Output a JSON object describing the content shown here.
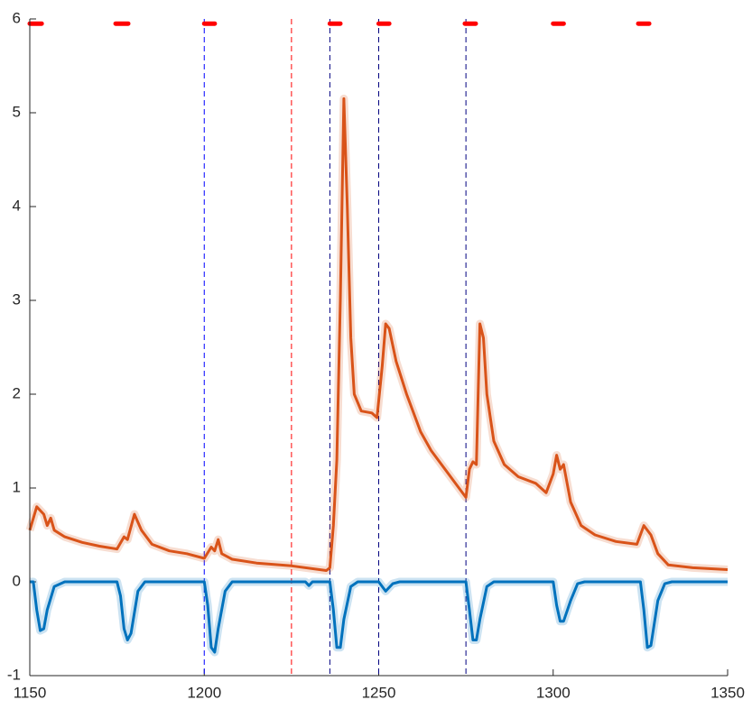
{
  "chart_data": {
    "type": "line",
    "xlim": [
      1150,
      1350
    ],
    "xticks": [
      1150,
      1200,
      1250,
      1300,
      1350
    ],
    "ylim": [
      -1,
      6
    ],
    "yticks": [
      -1,
      0,
      1,
      2,
      3,
      4,
      5,
      6
    ],
    "series": [
      {
        "color": "#d95319",
        "x": [
          1150,
          1152,
          1154,
          1155,
          1156,
          1157,
          1160,
          1165,
          1170,
          1175,
          1177,
          1178,
          1180,
          1182,
          1185,
          1190,
          1195,
          1200,
          1202,
          1203,
          1204,
          1205,
          1208,
          1215,
          1225,
          1235,
          1236,
          1237,
          1238,
          1239,
          1240,
          1241,
          1242,
          1243,
          1245,
          1248,
          1249.5,
          1251,
          1252,
          1253,
          1255,
          1258,
          1262,
          1265,
          1270,
          1275,
          1276,
          1277,
          1278,
          1279,
          1280,
          1281,
          1283,
          1286,
          1290,
          1295,
          1298,
          1300,
          1301,
          1302,
          1303,
          1305,
          1308,
          1312,
          1318,
          1324,
          1326,
          1328,
          1330,
          1333,
          1340,
          1350
        ],
        "values": [
          0.55,
          0.8,
          0.72,
          0.6,
          0.68,
          0.55,
          0.48,
          0.42,
          0.38,
          0.35,
          0.48,
          0.45,
          0.72,
          0.55,
          0.4,
          0.33,
          0.3,
          0.25,
          0.37,
          0.33,
          0.45,
          0.3,
          0.24,
          0.2,
          0.17,
          0.12,
          0.15,
          0.6,
          1.3,
          3.0,
          5.15,
          4.0,
          2.6,
          2.0,
          1.82,
          1.8,
          1.75,
          2.3,
          2.75,
          2.7,
          2.35,
          2.0,
          1.6,
          1.4,
          1.15,
          0.9,
          1.2,
          1.28,
          1.25,
          2.75,
          2.6,
          2.0,
          1.5,
          1.25,
          1.12,
          1.05,
          0.95,
          1.15,
          1.35,
          1.2,
          1.25,
          0.85,
          0.6,
          0.5,
          0.43,
          0.4,
          0.6,
          0.5,
          0.3,
          0.18,
          0.15,
          0.13
        ]
      },
      {
        "color": "#0072bd",
        "x": [
          1150,
          1151,
          1152,
          1153,
          1154,
          1155,
          1157,
          1160,
          1175,
          1176,
          1177,
          1178,
          1179,
          1181,
          1183,
          1200,
          1201,
          1202,
          1203,
          1204,
          1206,
          1208,
          1229,
          1230,
          1231,
          1236,
          1237,
          1238,
          1239,
          1240,
          1242,
          1244,
          1250,
          1252,
          1254,
          1256,
          1275,
          1276,
          1277,
          1278,
          1279,
          1281,
          1283,
          1300,
          1301,
          1302,
          1303,
          1305,
          1307,
          1309,
          1325,
          1326,
          1327,
          1328,
          1330,
          1332,
          1334,
          1350
        ],
        "values": [
          0,
          0,
          -0.3,
          -0.52,
          -0.5,
          -0.3,
          -0.05,
          0,
          0,
          -0.15,
          -0.5,
          -0.62,
          -0.55,
          -0.1,
          0,
          0,
          -0.25,
          -0.7,
          -0.75,
          -0.5,
          -0.1,
          0,
          0,
          -0.04,
          0,
          0,
          -0.3,
          -0.7,
          -0.7,
          -0.4,
          -0.05,
          0,
          0,
          -0.1,
          -0.02,
          0,
          0,
          -0.3,
          -0.62,
          -0.62,
          -0.4,
          -0.05,
          0,
          0,
          -0.25,
          -0.42,
          -0.42,
          -0.2,
          -0.02,
          0,
          0,
          -0.3,
          -0.7,
          -0.68,
          -0.2,
          -0.02,
          0,
          0
        ]
      }
    ],
    "vlines": [
      {
        "x": 1200,
        "color": "#0000ff"
      },
      {
        "x": 1225,
        "color": "#ff0000"
      },
      {
        "x": 1236,
        "color": "#000080"
      },
      {
        "x": 1250,
        "color": "#000080"
      },
      {
        "x": 1275,
        "color": "#000080"
      }
    ],
    "segments": {
      "color": "#ff0000",
      "y": 5.95,
      "x": [
        [
          1150,
          1153.4
        ],
        [
          1174.6,
          1178.2
        ],
        [
          1200,
          1203
        ],
        [
          1236,
          1239
        ],
        [
          1250,
          1253
        ],
        [
          1274.7,
          1277.8
        ],
        [
          1300,
          1303
        ],
        [
          1324.4,
          1327.5
        ]
      ]
    }
  }
}
